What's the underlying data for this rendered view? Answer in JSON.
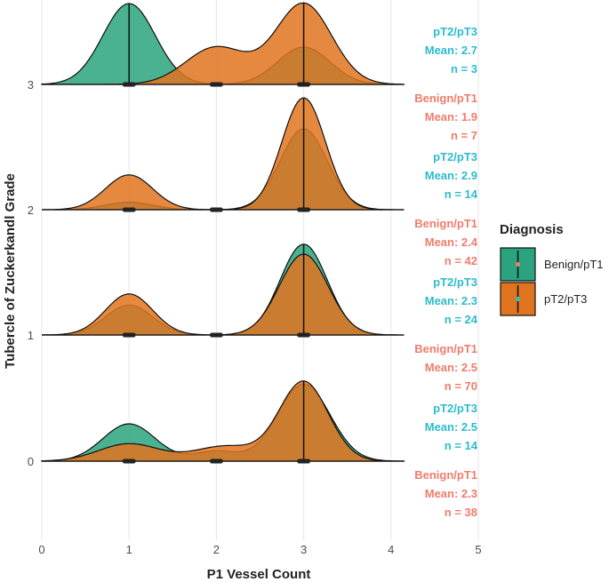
{
  "chart_data": {
    "type": "ridgeline-density",
    "xlabel": "P1 Vessel Count",
    "ylabel": "Tubercle of Zuckerkandl Grade",
    "xlim": [
      0,
      5
    ],
    "x_ticks": [
      "0",
      "1",
      "2",
      "3",
      "4",
      "5"
    ],
    "grid": "vertical",
    "legend": {
      "title": "Diagnosis",
      "placement": "right",
      "entries": [
        {
          "label": "Benign/pT1",
          "color": "#2aa37e",
          "point_color": "#f07c6c"
        },
        {
          "label": "pT2/pT3",
          "color": "#e0741f",
          "point_color": "#2bbccd"
        }
      ]
    },
    "colors": {
      "benign_fill": "#2aa37e",
      "pt23_fill": "#e0741f",
      "benign_text": "#f07c6c",
      "pt23_text": "#2bbccd"
    },
    "groups": [
      {
        "grade": "0",
        "series": [
          {
            "name": "Benign/pT1",
            "mean": 2.3,
            "n": 38,
            "peaks": [
              [
                1,
                0.3,
                0.3
              ],
              [
                2,
                0.25,
                0.08
              ],
              [
                3,
                0.3,
                0.62
              ]
            ],
            "points": [
              1,
              2,
              3
            ]
          },
          {
            "name": "pT2/pT3",
            "mean": 2.5,
            "n": 14,
            "peaks": [
              [
                1,
                0.35,
                0.14
              ],
              [
                2.1,
                0.35,
                0.12
              ],
              [
                3,
                0.28,
                0.64
              ]
            ],
            "points": [
              1,
              2,
              3
            ]
          }
        ],
        "annotations": [
          {
            "group": "pT2/pT3",
            "lines": [
              "pT2/pT3",
              "Mean: 2.5",
              "n = 14"
            ]
          },
          {
            "group": "Benign/pT1",
            "lines": [
              "Benign/pT1",
              "Mean: 2.3",
              "n = 38"
            ]
          }
        ]
      },
      {
        "grade": "1",
        "series": [
          {
            "name": "Benign/pT1",
            "mean": 2.5,
            "n": 70,
            "peaks": [
              [
                1,
                0.27,
                0.24
              ],
              [
                3,
                0.27,
                0.73
              ]
            ],
            "points": [
              1,
              2,
              3
            ]
          },
          {
            "name": "pT2/pT3",
            "mean": 2.3,
            "n": 24,
            "peaks": [
              [
                1,
                0.27,
                0.33
              ],
              [
                3,
                0.28,
                0.65
              ]
            ],
            "points": [
              1,
              2,
              3
            ]
          }
        ],
        "annotations": [
          {
            "group": "pT2/pT3",
            "lines": [
              "pT2/pT3",
              "Mean: 2.3",
              "n = 24"
            ]
          },
          {
            "group": "Benign/pT1",
            "lines": [
              "Benign/pT1",
              "Mean: 2.5",
              "n = 70"
            ]
          }
        ]
      },
      {
        "grade": "2",
        "series": [
          {
            "name": "Benign/pT1",
            "mean": 2.4,
            "n": 42,
            "peaks": [
              [
                1,
                0.27,
                0.06
              ],
              [
                3,
                0.27,
                0.65
              ]
            ],
            "points": [
              1,
              2,
              3
            ]
          },
          {
            "name": "pT2/pT3",
            "mean": 2.9,
            "n": 14,
            "peaks": [
              [
                1,
                0.27,
                0.28
              ],
              [
                3,
                0.25,
                0.9
              ]
            ],
            "points": [
              1,
              2,
              3
            ]
          }
        ],
        "annotations": [
          {
            "group": "pT2/pT3",
            "lines": [
              "pT2/pT3",
              "Mean: 2.9",
              "n = 14"
            ]
          },
          {
            "group": "Benign/pT1",
            "lines": [
              "Benign/pT1",
              "Mean: 2.4",
              "n = 42"
            ]
          }
        ]
      },
      {
        "grade": "3",
        "series": [
          {
            "name": "Benign/pT1",
            "mean": 1.9,
            "n": 7,
            "peaks": [
              [
                1,
                0.3,
                0.65
              ],
              [
                3,
                0.3,
                0.3
              ]
            ],
            "points": [
              1,
              2,
              3
            ]
          },
          {
            "name": "pT2/pT3",
            "mean": 2.7,
            "n": 3,
            "peaks": [
              [
                2,
                0.35,
                0.3
              ],
              [
                3,
                0.32,
                0.65
              ]
            ],
            "points": [
              1,
              2,
              3
            ]
          }
        ],
        "annotations": [
          {
            "group": "pT2/pT3",
            "lines": [
              "pT2/pT3",
              "Mean: 2.7",
              "n = 3"
            ]
          },
          {
            "group": "Benign/pT1",
            "lines": [
              "Benign/pT1",
              "Mean: 1.9",
              "n = 7"
            ]
          }
        ]
      }
    ]
  }
}
